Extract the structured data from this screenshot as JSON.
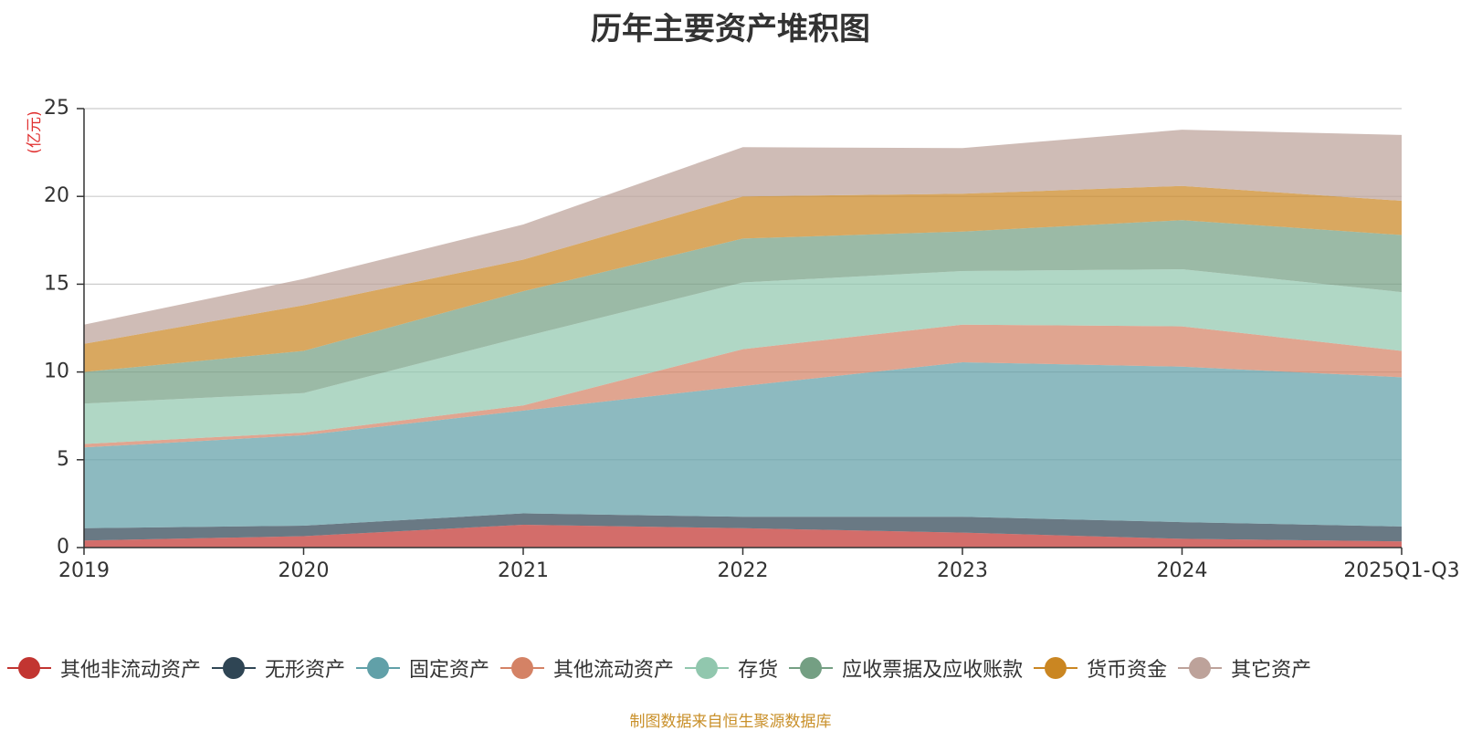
{
  "chart_data": {
    "type": "area",
    "stacked": true,
    "title": "历年主要资产堆积图",
    "ylabel": "(亿元)",
    "xlabel": "",
    "categories": [
      "2019",
      "2020",
      "2021",
      "2022",
      "2023",
      "2024",
      "2025Q1-Q3"
    ],
    "ylim": [
      0,
      25
    ],
    "yticks": [
      0,
      5,
      10,
      15,
      20,
      25
    ],
    "grid": true,
    "legend_position": "bottom",
    "series": [
      {
        "name": "其他非流动资产",
        "color": "#c23531",
        "values": [
          0.4,
          0.65,
          1.3,
          1.1,
          0.85,
          0.5,
          0.35
        ]
      },
      {
        "name": "无形资产",
        "color": "#2f4554",
        "values": [
          0.7,
          0.6,
          0.65,
          0.65,
          0.9,
          0.95,
          0.85
        ]
      },
      {
        "name": "固定资产",
        "color": "#61a0a8",
        "values": [
          4.6,
          5.15,
          5.85,
          7.45,
          8.8,
          8.85,
          8.5
        ]
      },
      {
        "name": "其他流动资产",
        "color": "#d48265",
        "values": [
          0.2,
          0.15,
          0.3,
          2.1,
          2.15,
          2.3,
          1.5
        ]
      },
      {
        "name": "存货",
        "color": "#91c7ae",
        "values": [
          2.3,
          2.25,
          3.9,
          3.8,
          3.05,
          3.25,
          3.35
        ]
      },
      {
        "name": "应收票据及应收账款",
        "color": "#749f83",
        "values": [
          1.8,
          2.4,
          2.6,
          2.5,
          2.25,
          2.8,
          3.25
        ]
      },
      {
        "name": "货币资金",
        "color": "#ca8622",
        "values": [
          1.6,
          2.6,
          1.8,
          2.4,
          2.15,
          1.95,
          1.95
        ]
      },
      {
        "name": "其它资产",
        "color": "#bda29a",
        "values": [
          1.1,
          1.5,
          2.0,
          2.8,
          2.6,
          3.2,
          3.75
        ]
      }
    ]
  },
  "footer": {
    "source": "制图数据来自恒生聚源数据库"
  }
}
